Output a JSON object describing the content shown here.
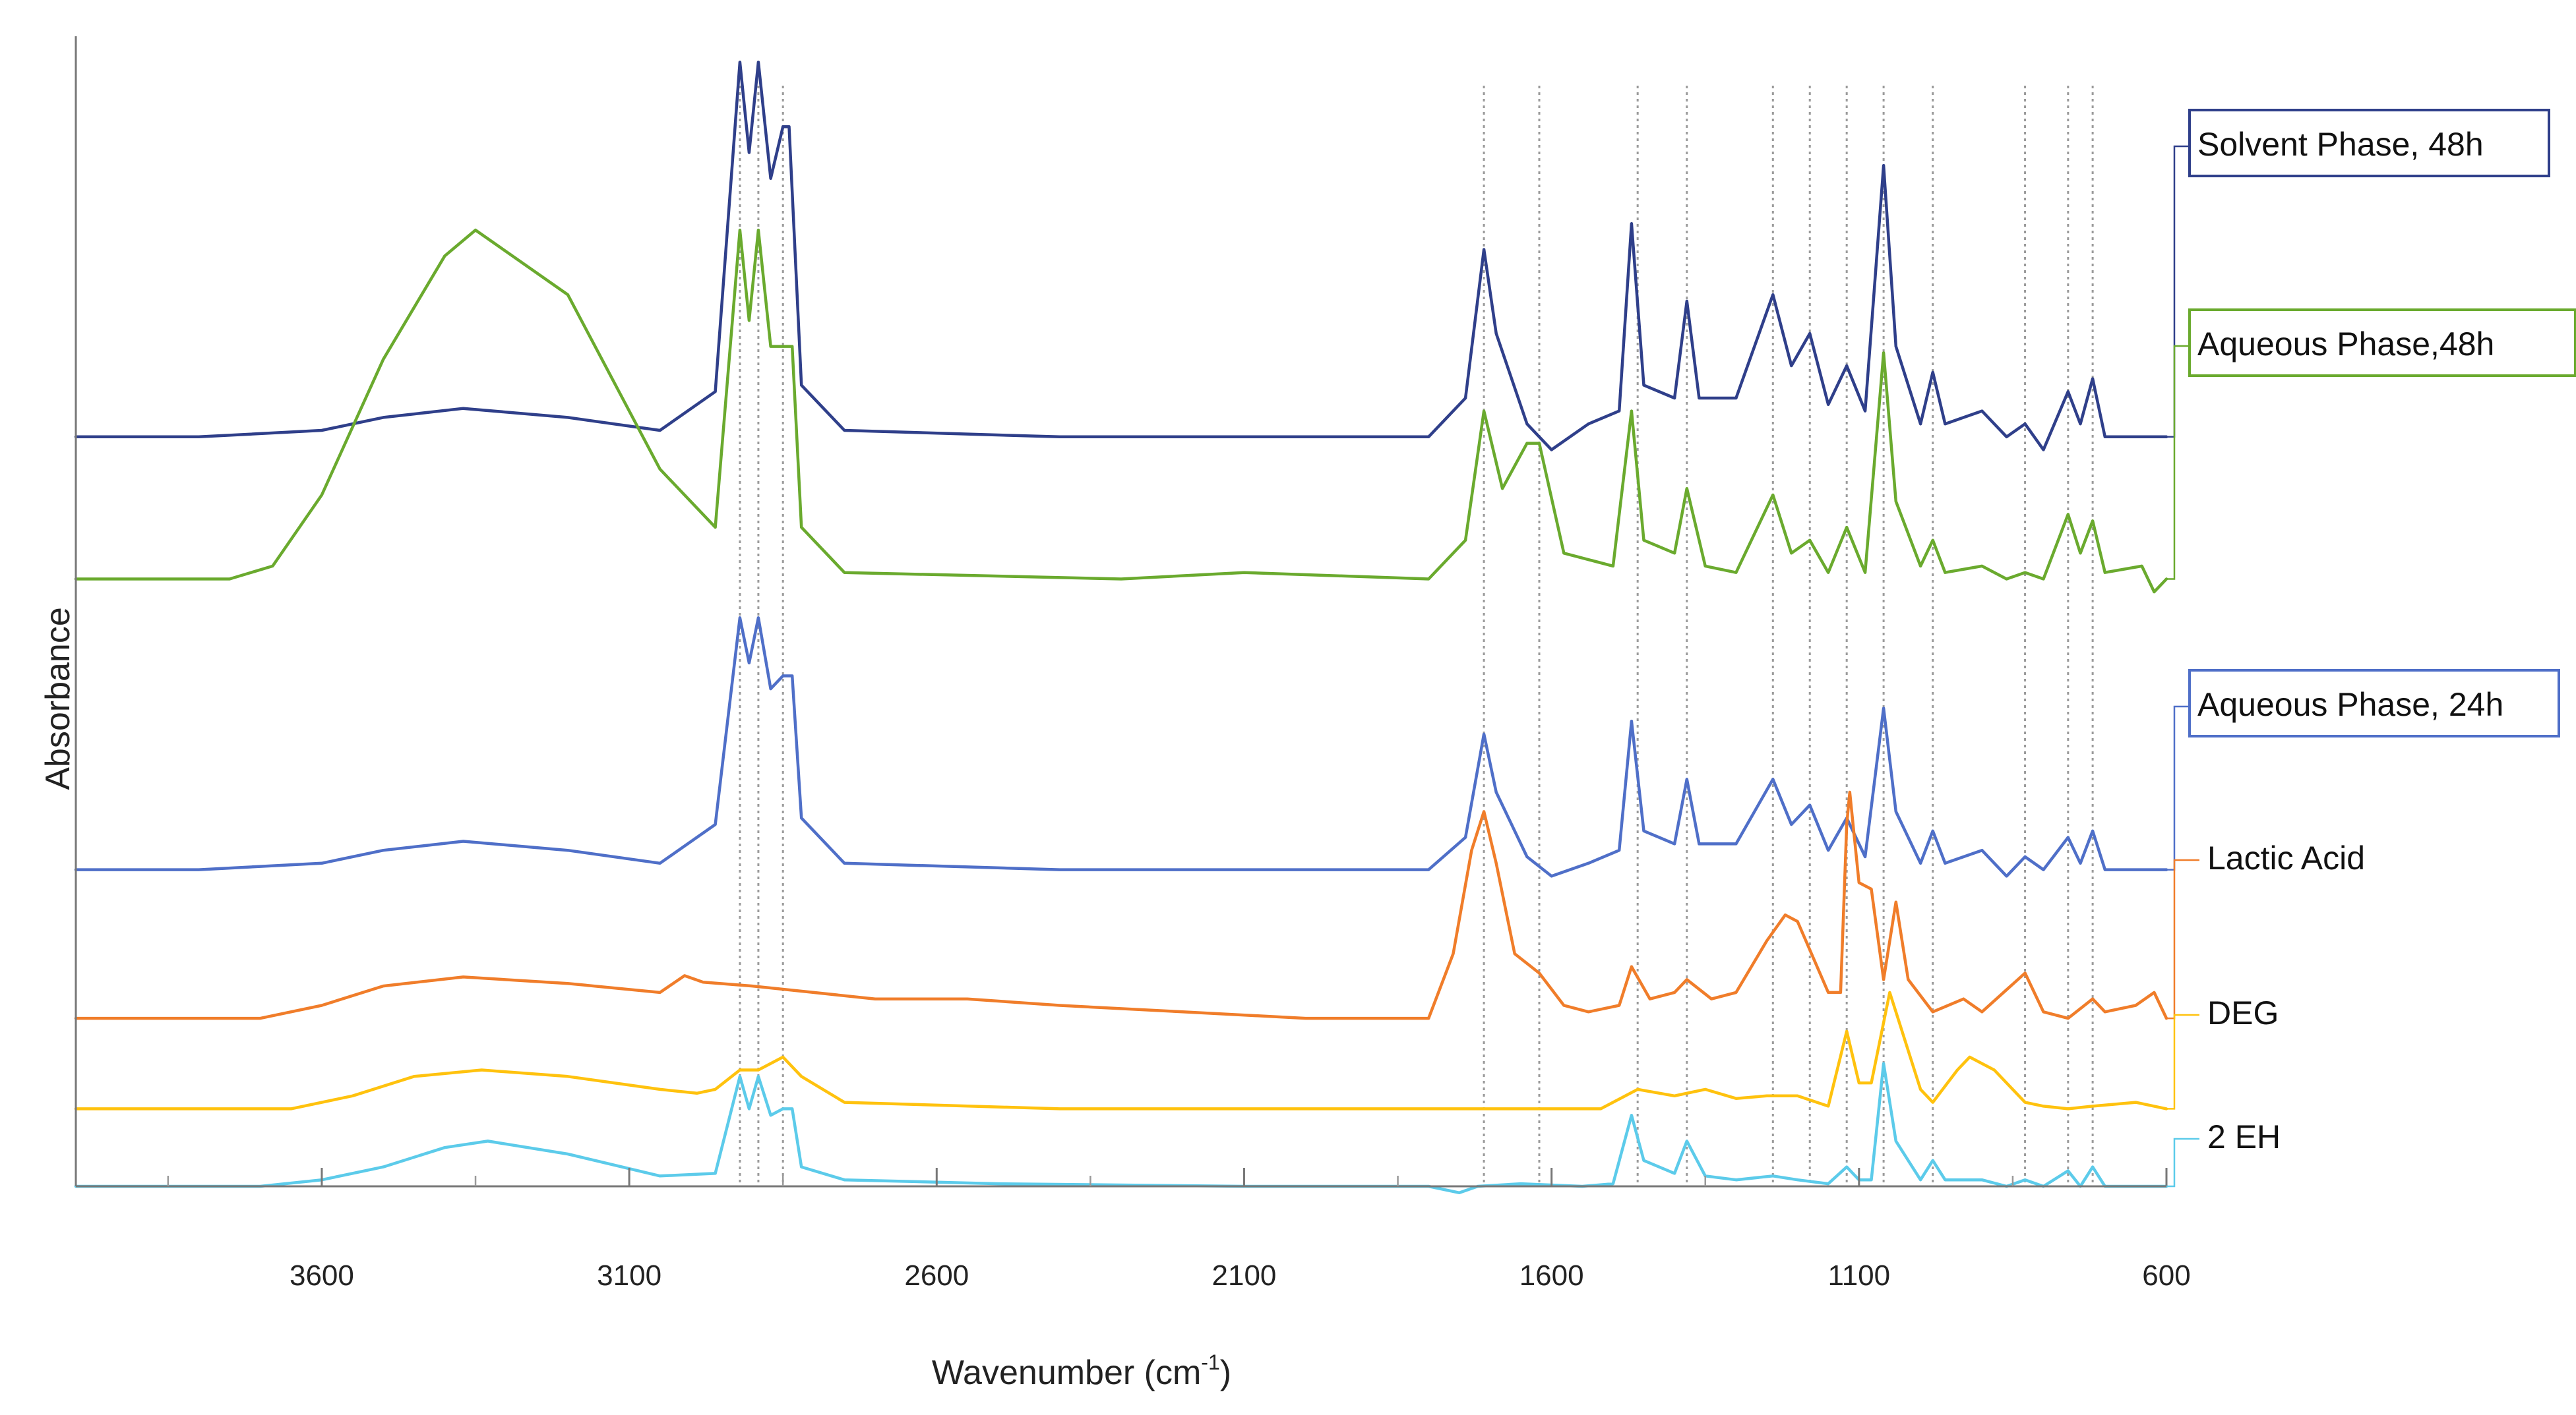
{
  "chart_data": {
    "type": "line",
    "xlabel": "Wavenumber (cm",
    "xlabel_sup": "-1",
    "xlabel_tail": ")",
    "ylabel": "Absorbance",
    "xlim": [
      4000,
      600
    ],
    "xaxis_reversed": true,
    "xticks": [
      3600,
      3100,
      2600,
      2100,
      1600,
      1100,
      600
    ],
    "grid": false,
    "reference_lines": [
      2920,
      2890,
      2850,
      1710,
      1620,
      1460,
      1380,
      1240,
      1180,
      1120,
      1060,
      980,
      830,
      760,
      720
    ],
    "series": [
      {
        "name": "Solvent Phase, 48h",
        "color": "#2f3f8a",
        "boxed": true,
        "baseline": 4.8,
        "points": [
          [
            4000,
            0
          ],
          [
            3800,
            0
          ],
          [
            3600,
            0.05
          ],
          [
            3500,
            0.15
          ],
          [
            3370,
            0.22
          ],
          [
            3200,
            0.15
          ],
          [
            3050,
            0.05
          ],
          [
            2960,
            0.35
          ],
          [
            2920,
            2.9
          ],
          [
            2905,
            2.2
          ],
          [
            2890,
            2.9
          ],
          [
            2870,
            2.0
          ],
          [
            2850,
            2.4
          ],
          [
            2840,
            2.4
          ],
          [
            2820,
            0.4
          ],
          [
            2750,
            0.05
          ],
          [
            2400,
            0
          ],
          [
            1800,
            0
          ],
          [
            1740,
            0.3
          ],
          [
            1710,
            1.45
          ],
          [
            1690,
            0.8
          ],
          [
            1640,
            0.1
          ],
          [
            1600,
            -0.1
          ],
          [
            1540,
            0.1
          ],
          [
            1490,
            0.2
          ],
          [
            1470,
            1.65
          ],
          [
            1450,
            0.4
          ],
          [
            1400,
            0.3
          ],
          [
            1380,
            1.05
          ],
          [
            1360,
            0.3
          ],
          [
            1300,
            0.3
          ],
          [
            1240,
            1.1
          ],
          [
            1210,
            0.55
          ],
          [
            1180,
            0.8
          ],
          [
            1150,
            0.25
          ],
          [
            1120,
            0.55
          ],
          [
            1090,
            0.2
          ],
          [
            1060,
            2.1
          ],
          [
            1040,
            0.7
          ],
          [
            1000,
            0.1
          ],
          [
            980,
            0.5
          ],
          [
            960,
            0.1
          ],
          [
            900,
            0.2
          ],
          [
            860,
            0
          ],
          [
            830,
            0.1
          ],
          [
            800,
            -0.1
          ],
          [
            760,
            0.35
          ],
          [
            740,
            0.1
          ],
          [
            720,
            0.45
          ],
          [
            700,
            0
          ],
          [
            600,
            0
          ]
        ]
      },
      {
        "name": "Aqueous Phase,48h",
        "color": "#6aaa2e",
        "boxed": true,
        "baseline": 3.7,
        "points": [
          [
            4000,
            0
          ],
          [
            3750,
            0
          ],
          [
            3680,
            0.1
          ],
          [
            3600,
            0.65
          ],
          [
            3500,
            1.7
          ],
          [
            3450,
            2.1
          ],
          [
            3400,
            2.5
          ],
          [
            3350,
            2.7
          ],
          [
            3200,
            2.2
          ],
          [
            3050,
            0.85
          ],
          [
            2960,
            0.4
          ],
          [
            2920,
            2.7
          ],
          [
            2905,
            2.0
          ],
          [
            2890,
            2.7
          ],
          [
            2870,
            1.8
          ],
          [
            2850,
            1.8
          ],
          [
            2835,
            1.8
          ],
          [
            2820,
            0.4
          ],
          [
            2750,
            0.05
          ],
          [
            2300,
            0
          ],
          [
            2100,
            0.05
          ],
          [
            1800,
            0
          ],
          [
            1740,
            0.3
          ],
          [
            1710,
            1.3
          ],
          [
            1680,
            0.7
          ],
          [
            1640,
            1.05
          ],
          [
            1620,
            1.05
          ],
          [
            1580,
            0.2
          ],
          [
            1500,
            0.1
          ],
          [
            1470,
            1.3
          ],
          [
            1450,
            0.3
          ],
          [
            1400,
            0.2
          ],
          [
            1380,
            0.7
          ],
          [
            1350,
            0.1
          ],
          [
            1300,
            0.05
          ],
          [
            1240,
            0.65
          ],
          [
            1210,
            0.2
          ],
          [
            1180,
            0.3
          ],
          [
            1150,
            0.05
          ],
          [
            1120,
            0.4
          ],
          [
            1090,
            0.05
          ],
          [
            1060,
            1.75
          ],
          [
            1040,
            0.6
          ],
          [
            1000,
            0.1
          ],
          [
            980,
            0.3
          ],
          [
            960,
            0.05
          ],
          [
            900,
            0.1
          ],
          [
            860,
            0
          ],
          [
            830,
            0.05
          ],
          [
            800,
            0
          ],
          [
            760,
            0.5
          ],
          [
            740,
            0.2
          ],
          [
            720,
            0.45
          ],
          [
            700,
            0.05
          ],
          [
            640,
            0.1
          ],
          [
            620,
            -0.1
          ],
          [
            600,
            0
          ]
        ]
      },
      {
        "name": "Aqueous Phase, 24h",
        "color": "#4f6fc8",
        "boxed": true,
        "baseline": 1.45,
        "points": [
          [
            4000,
            0
          ],
          [
            3800,
            0
          ],
          [
            3600,
            0.05
          ],
          [
            3500,
            0.15
          ],
          [
            3370,
            0.22
          ],
          [
            3200,
            0.15
          ],
          [
            3050,
            0.05
          ],
          [
            2960,
            0.35
          ],
          [
            2920,
            1.95
          ],
          [
            2905,
            1.6
          ],
          [
            2890,
            1.95
          ],
          [
            2870,
            1.4
          ],
          [
            2850,
            1.5
          ],
          [
            2835,
            1.5
          ],
          [
            2820,
            0.4
          ],
          [
            2750,
            0.05
          ],
          [
            2400,
            0
          ],
          [
            1800,
            0
          ],
          [
            1740,
            0.25
          ],
          [
            1710,
            1.05
          ],
          [
            1690,
            0.6
          ],
          [
            1640,
            0.1
          ],
          [
            1600,
            -0.05
          ],
          [
            1540,
            0.05
          ],
          [
            1490,
            0.15
          ],
          [
            1470,
            1.15
          ],
          [
            1450,
            0.3
          ],
          [
            1400,
            0.2
          ],
          [
            1380,
            0.7
          ],
          [
            1360,
            0.2
          ],
          [
            1300,
            0.2
          ],
          [
            1240,
            0.7
          ],
          [
            1210,
            0.35
          ],
          [
            1180,
            0.5
          ],
          [
            1150,
            0.15
          ],
          [
            1120,
            0.4
          ],
          [
            1090,
            0.1
          ],
          [
            1060,
            1.25
          ],
          [
            1040,
            0.45
          ],
          [
            1000,
            0.05
          ],
          [
            980,
            0.3
          ],
          [
            960,
            0.05
          ],
          [
            900,
            0.15
          ],
          [
            860,
            -0.05
          ],
          [
            830,
            0.1
          ],
          [
            800,
            0
          ],
          [
            760,
            0.25
          ],
          [
            740,
            0.05
          ],
          [
            720,
            0.3
          ],
          [
            700,
            0
          ],
          [
            600,
            0
          ]
        ]
      },
      {
        "name": "Lactic Acid",
        "color": "#f07d2a",
        "boxed": false,
        "baseline": 0.3,
        "points": [
          [
            4000,
            0
          ],
          [
            3700,
            0
          ],
          [
            3600,
            0.1
          ],
          [
            3500,
            0.25
          ],
          [
            3370,
            0.32
          ],
          [
            3200,
            0.27
          ],
          [
            3050,
            0.2
          ],
          [
            3010,
            0.33
          ],
          [
            2980,
            0.28
          ],
          [
            2900,
            0.25
          ],
          [
            2800,
            0.2
          ],
          [
            2700,
            0.15
          ],
          [
            2550,
            0.15
          ],
          [
            2400,
            0.1
          ],
          [
            2200,
            0.05
          ],
          [
            2000,
            0
          ],
          [
            1800,
            0
          ],
          [
            1760,
            0.5
          ],
          [
            1730,
            1.3
          ],
          [
            1710,
            1.6
          ],
          [
            1690,
            1.2
          ],
          [
            1660,
            0.5
          ],
          [
            1620,
            0.35
          ],
          [
            1580,
            0.1
          ],
          [
            1540,
            0.05
          ],
          [
            1490,
            0.1
          ],
          [
            1470,
            0.4
          ],
          [
            1440,
            0.15
          ],
          [
            1400,
            0.2
          ],
          [
            1380,
            0.3
          ],
          [
            1340,
            0.15
          ],
          [
            1300,
            0.2
          ],
          [
            1250,
            0.6
          ],
          [
            1220,
            0.8
          ],
          [
            1200,
            0.75
          ],
          [
            1150,
            0.2
          ],
          [
            1130,
            0.2
          ],
          [
            1120,
            1.5
          ],
          [
            1115,
            1.75
          ],
          [
            1100,
            1.05
          ],
          [
            1080,
            1.0
          ],
          [
            1060,
            0.3
          ],
          [
            1040,
            0.9
          ],
          [
            1020,
            0.3
          ],
          [
            980,
            0.05
          ],
          [
            930,
            0.15
          ],
          [
            900,
            0.05
          ],
          [
            830,
            0.35
          ],
          [
            800,
            0.05
          ],
          [
            760,
            0
          ],
          [
            720,
            0.15
          ],
          [
            700,
            0.05
          ],
          [
            650,
            0.1
          ],
          [
            620,
            0.2
          ],
          [
            600,
            0
          ]
        ]
      },
      {
        "name": "DEG",
        "color": "#ffc20e",
        "boxed": false,
        "baseline": -0.4,
        "points": [
          [
            4000,
            0
          ],
          [
            3650,
            0
          ],
          [
            3550,
            0.1
          ],
          [
            3450,
            0.25
          ],
          [
            3340,
            0.3
          ],
          [
            3200,
            0.25
          ],
          [
            3050,
            0.15
          ],
          [
            2990,
            0.12
          ],
          [
            2960,
            0.15
          ],
          [
            2920,
            0.3
          ],
          [
            2890,
            0.3
          ],
          [
            2850,
            0.4
          ],
          [
            2820,
            0.25
          ],
          [
            2750,
            0.05
          ],
          [
            2400,
            0
          ],
          [
            1800,
            0
          ],
          [
            1520,
            0
          ],
          [
            1480,
            0.1
          ],
          [
            1460,
            0.15
          ],
          [
            1400,
            0.1
          ],
          [
            1350,
            0.15
          ],
          [
            1300,
            0.08
          ],
          [
            1250,
            0.1
          ],
          [
            1200,
            0.1
          ],
          [
            1150,
            0.02
          ],
          [
            1120,
            0.6
          ],
          [
            1100,
            0.2
          ],
          [
            1080,
            0.2
          ],
          [
            1050,
            0.9
          ],
          [
            1040,
            0.75
          ],
          [
            1000,
            0.15
          ],
          [
            980,
            0.05
          ],
          [
            940,
            0.3
          ],
          [
            920,
            0.4
          ],
          [
            880,
            0.3
          ],
          [
            830,
            0.05
          ],
          [
            800,
            0.02
          ],
          [
            760,
            0
          ],
          [
            720,
            0.02
          ],
          [
            650,
            0.05
          ],
          [
            600,
            0
          ]
        ]
      },
      {
        "name": "2 EH",
        "color": "#5ccbea",
        "boxed": false,
        "baseline": -1.0,
        "points": [
          [
            4000,
            0
          ],
          [
            3700,
            0
          ],
          [
            3600,
            0.05
          ],
          [
            3500,
            0.15
          ],
          [
            3400,
            0.3
          ],
          [
            3330,
            0.35
          ],
          [
            3200,
            0.25
          ],
          [
            3050,
            0.08
          ],
          [
            2960,
            0.1
          ],
          [
            2920,
            0.85
          ],
          [
            2905,
            0.6
          ],
          [
            2890,
            0.85
          ],
          [
            2870,
            0.55
          ],
          [
            2850,
            0.6
          ],
          [
            2835,
            0.6
          ],
          [
            2820,
            0.15
          ],
          [
            2750,
            0.05
          ],
          [
            2500,
            0.02
          ],
          [
            2100,
            0
          ],
          [
            1800,
            0
          ],
          [
            1750,
            -0.05
          ],
          [
            1720,
            0
          ],
          [
            1650,
            0.02
          ],
          [
            1550,
            0
          ],
          [
            1500,
            0.02
          ],
          [
            1470,
            0.55
          ],
          [
            1450,
            0.2
          ],
          [
            1400,
            0.1
          ],
          [
            1380,
            0.35
          ],
          [
            1350,
            0.08
          ],
          [
            1300,
            0.05
          ],
          [
            1240,
            0.08
          ],
          [
            1200,
            0.05
          ],
          [
            1150,
            0.02
          ],
          [
            1120,
            0.15
          ],
          [
            1100,
            0.05
          ],
          [
            1080,
            0.05
          ],
          [
            1060,
            0.95
          ],
          [
            1040,
            0.35
          ],
          [
            1000,
            0.05
          ],
          [
            980,
            0.2
          ],
          [
            960,
            0.05
          ],
          [
            900,
            0.05
          ],
          [
            860,
            0
          ],
          [
            830,
            0.05
          ],
          [
            800,
            0
          ],
          [
            760,
            0.12
          ],
          [
            740,
            0
          ],
          [
            720,
            0.15
          ],
          [
            700,
            0
          ],
          [
            600,
            0
          ]
        ]
      }
    ]
  }
}
